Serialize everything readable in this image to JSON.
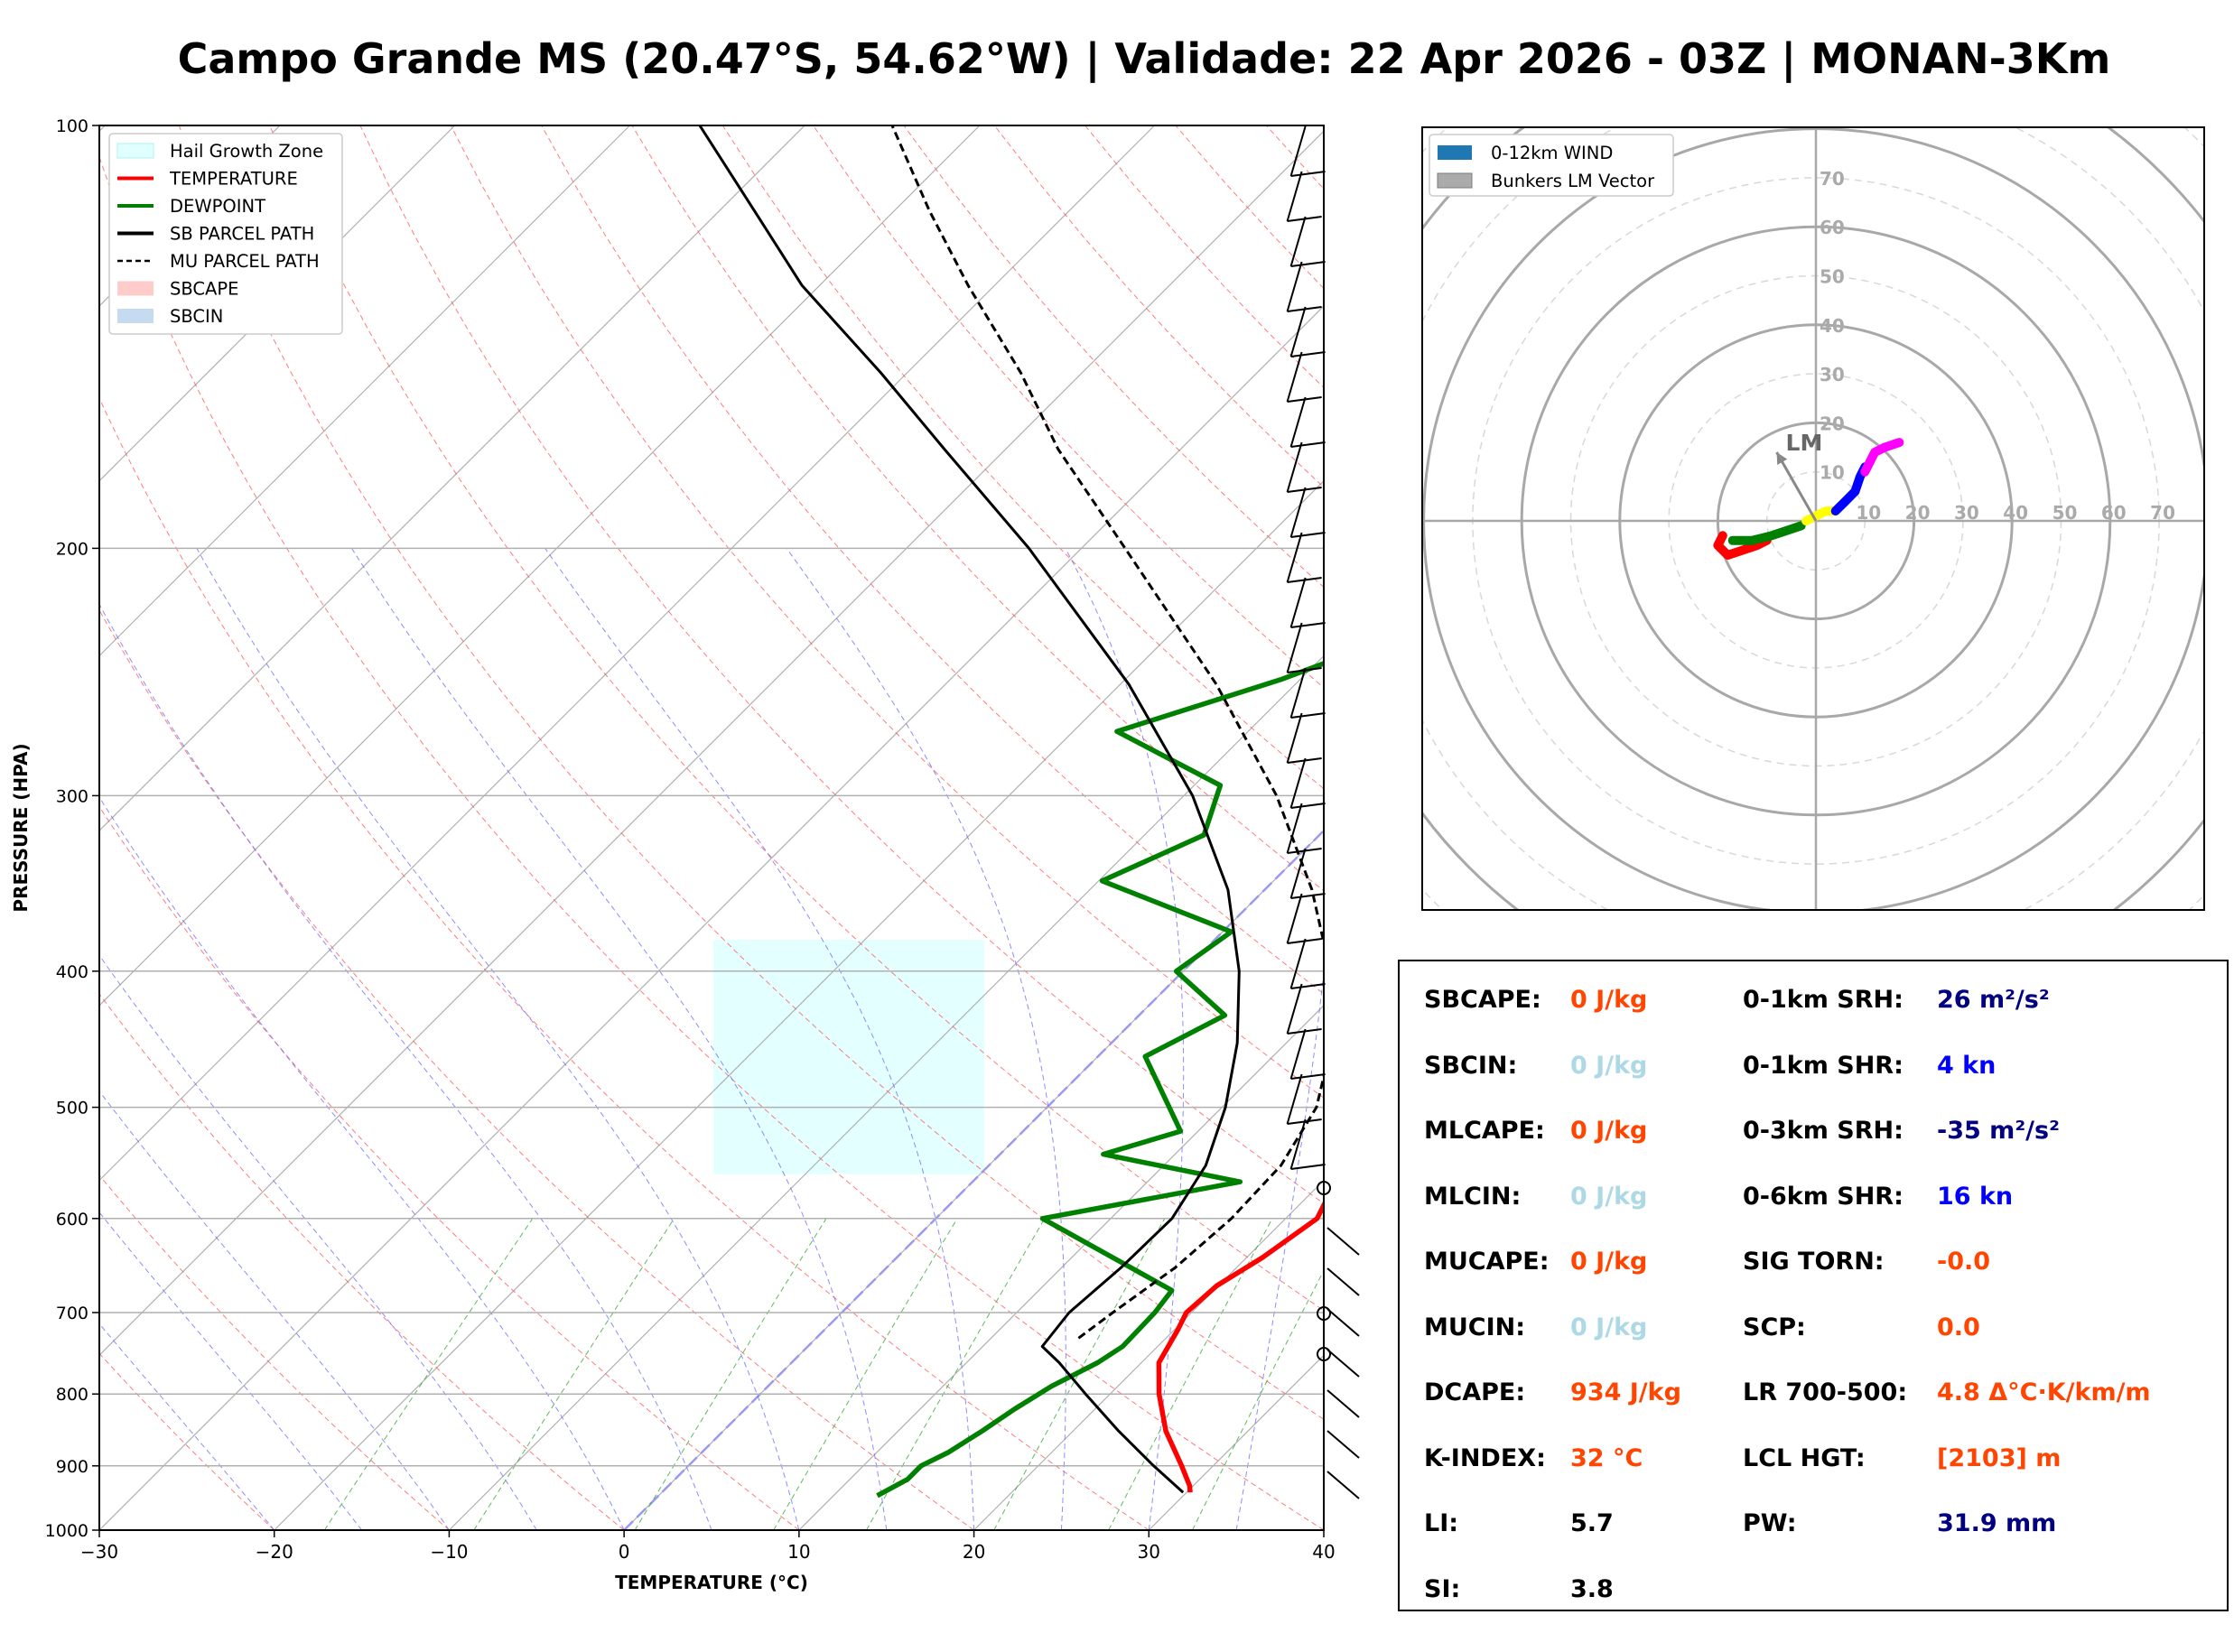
{
  "title": "Campo Grande MS (20.47°S, 54.62°W) | Validade: 22 Apr 2026 - 03Z | MONAN-3Km",
  "chart_data": [
    {
      "type": "line",
      "subtype": "skew-T log-P diagram",
      "xlabel": "TEMPERATURE (°C)",
      "ylabel": "PRESSURE (HPA)",
      "xlim": [
        -30,
        40
      ],
      "ylim": [
        1000,
        100
      ],
      "y_scale": "log",
      "x_ticks": [
        "−30",
        "−20",
        "−10",
        "0",
        "10",
        "20",
        "30",
        "40"
      ],
      "y_ticks": [
        "100",
        "200",
        "300",
        "400",
        "500",
        "600",
        "700",
        "800",
        "900",
        "1000"
      ],
      "grid": true,
      "legend_position": "top-left",
      "legend": [
        {
          "label": "Hail Growth Zone",
          "color": "#e0ffff",
          "style": "patch"
        },
        {
          "label": "TEMPERATURE",
          "color": "#ff0000",
          "style": "solid"
        },
        {
          "label": "DEWPOINT",
          "color": "#008000",
          "style": "solid"
        },
        {
          "label": "SB PARCEL PATH",
          "color": "#000000",
          "style": "solid"
        },
        {
          "label": "MU PARCEL PATH",
          "color": "#000000",
          "style": "dashed"
        },
        {
          "label": "SBCAPE",
          "color": "#ffcccc",
          "style": "patch"
        },
        {
          "label": "SBCIN",
          "color": "#c6dbef",
          "style": "patch"
        }
      ],
      "hail_growth_zone": {
        "p_top": 380,
        "p_bottom": 558
      },
      "series": [
        {
          "name": "TEMPERATURE",
          "color": "#ff0000",
          "points": [
            [
              940,
              30.2
            ],
            [
              930,
              29.8
            ],
            [
              900,
              28.2
            ],
            [
              850,
              25.3
            ],
            [
              800,
              22.8
            ],
            [
              760,
              21.0
            ],
            [
              720,
              20.2
            ],
            [
              700,
              19.7
            ],
            [
              670,
              19.9
            ],
            [
              640,
              20.9
            ],
            [
              600,
              21.8
            ],
            [
              560,
              20.6
            ],
            [
              520,
              19.2
            ],
            [
              500,
              18.4
            ],
            [
              460,
              17.2
            ],
            [
              430,
              15.7
            ],
            [
              400,
              14.3
            ],
            [
              370,
              13.5
            ],
            [
              330,
              12.6
            ],
            [
              300,
              11.0
            ],
            [
              270,
              9.0
            ],
            [
              240,
              6.4
            ],
            [
              220,
              4.4
            ],
            [
              200,
              2.1
            ],
            [
              180,
              -0.5
            ],
            [
              165,
              -2.7
            ],
            [
              150,
              -3.9
            ],
            [
              130,
              -4.0
            ],
            [
              115,
              -2.1
            ],
            [
              100,
              -0.2
            ]
          ]
        },
        {
          "name": "DEWPOINT",
          "color": "#008000",
          "points": [
            [
              945,
              12.5
            ],
            [
              920,
              13.3
            ],
            [
              900,
              13.3
            ],
            [
              880,
              14.1
            ],
            [
              850,
              14.8
            ],
            [
              820,
              15.4
            ],
            [
              790,
              16.2
            ],
            [
              760,
              17.5
            ],
            [
              740,
              18.0
            ],
            [
              700,
              17.9
            ],
            [
              675,
              17.6
            ],
            [
              600,
              6.1
            ],
            [
              565,
              15.3
            ],
            [
              540,
              5.9
            ],
            [
              520,
              9.0
            ],
            [
              460,
              2.7
            ],
            [
              430,
              4.9
            ],
            [
              400,
              -0.4
            ],
            [
              375,
              0.5
            ],
            [
              345,
              -9.8
            ],
            [
              320,
              -6.6
            ],
            [
              295,
              -8.5
            ],
            [
              270,
              -17.5
            ],
            [
              248,
              -11.1
            ],
            [
              220,
              -4.1
            ],
            [
              200,
              -8.9
            ],
            [
              180,
              -14.4
            ],
            [
              160,
              -17.6
            ],
            [
              140,
              -22.4
            ],
            [
              120,
              -24.8
            ],
            [
              100,
              -27.2
            ]
          ]
        },
        {
          "name": "SB PARCEL PATH",
          "color": "#000000",
          "points": [
            [
              940,
              29.8
            ],
            [
              900,
              26.6
            ],
            [
              850,
              22.6
            ],
            [
              800,
              18.6
            ],
            [
              760,
              15.3
            ],
            [
              740,
              13.4
            ],
            [
              700,
              13.0
            ],
            [
              650,
              13.4
            ],
            [
              600,
              13.5
            ],
            [
              550,
              12.4
            ],
            [
              500,
              10.2
            ],
            [
              450,
              7.2
            ],
            [
              400,
              3.2
            ],
            [
              350,
              -2.1
            ],
            [
              300,
              -9.5
            ],
            [
              250,
              -19.5
            ],
            [
              200,
              -33.0
            ],
            [
              170,
              -43.5
            ],
            [
              150,
              -51.5
            ],
            [
              130,
              -61.0
            ],
            [
              115,
              -68.0
            ],
            [
              100,
              -76.0
            ]
          ]
        },
        {
          "name": "MU PARCEL PATH",
          "color": "#000000",
          "points": [
            [
              730,
              15.0
            ],
            [
              700,
              15.5
            ],
            [
              650,
              16.5
            ],
            [
              600,
              16.9
            ],
            [
              550,
              16.7
            ],
            [
              500,
              15.4
            ],
            [
              450,
              12.6
            ],
            [
              400,
              8.4
            ],
            [
              350,
              2.7
            ],
            [
              300,
              -4.7
            ],
            [
              250,
              -14.5
            ],
            [
              200,
              -27.5
            ],
            [
              170,
              -37.0
            ],
            [
              150,
              -43.5
            ],
            [
              130,
              -51.5
            ],
            [
              115,
              -58.0
            ],
            [
              100,
              -65.0
            ]
          ]
        }
      ]
    },
    {
      "type": "line",
      "subtype": "hodograph",
      "r_max": 80,
      "r_ticks": [
        "10",
        "20",
        "30",
        "40",
        "50",
        "60",
        "70"
      ],
      "legend_position": "top-left",
      "legend": [
        {
          "label": "0-12km WIND",
          "color": "#1f77b4"
        },
        {
          "label": "Bunkers LM Vector",
          "color": "#888888"
        }
      ],
      "lm_label": "LM",
      "lm_vector": {
        "u": -8,
        "v": 14
      },
      "segments": [
        {
          "color": "#ff0000",
          "points": [
            [
              -19,
              -3
            ],
            [
              -20,
              -5
            ],
            [
              -18,
              -7
            ],
            [
              -15,
              -6
            ],
            [
              -12,
              -5
            ],
            [
              -10,
              -4
            ]
          ]
        },
        {
          "color": "#008000",
          "points": [
            [
              -17,
              -4
            ],
            [
              -13,
              -4
            ],
            [
              -9,
              -3
            ],
            [
              -6,
              -2
            ],
            [
              -3,
              -1
            ]
          ]
        },
        {
          "color": "#ffff00",
          "points": [
            [
              -2,
              0
            ],
            [
              0,
              1
            ],
            [
              2,
              2
            ],
            [
              4,
              2
            ]
          ]
        },
        {
          "color": "#0000ff",
          "points": [
            [
              4,
              2
            ],
            [
              6,
              4
            ],
            [
              8,
              6
            ],
            [
              9,
              9
            ],
            [
              10,
              11
            ]
          ]
        },
        {
          "color": "#ff00ff",
          "points": [
            [
              10,
              10
            ],
            [
              11,
              12
            ],
            [
              12,
              14
            ],
            [
              14,
              15
            ],
            [
              17,
              16
            ]
          ]
        }
      ]
    }
  ],
  "params": {
    "left": [
      {
        "label": "SBCAPE:",
        "value": "0 J/kg",
        "color": "#ff4500"
      },
      {
        "label": "SBCIN:",
        "value": "0 J/kg",
        "color": "#add8e6"
      },
      {
        "label": "MLCAPE:",
        "value": "0 J/kg",
        "color": "#ff4500"
      },
      {
        "label": "MLCIN:",
        "value": "0 J/kg",
        "color": "#add8e6"
      },
      {
        "label": "MUCAPE:",
        "value": "0 J/kg",
        "color": "#ff4500"
      },
      {
        "label": "MUCIN:",
        "value": "0 J/kg",
        "color": "#add8e6"
      },
      {
        "label": "DCAPE:",
        "value": "934 J/kg",
        "color": "#ff4500"
      },
      {
        "label": "K-INDEX:",
        "value": "32 °C",
        "color": "#ff4500"
      },
      {
        "label": "LI:",
        "value": "5.7",
        "color": "#000000"
      },
      {
        "label": "SI:",
        "value": "3.8",
        "color": "#000000"
      }
    ],
    "right": [
      {
        "label": "0-1km SRH:",
        "value": "26 m²/s²",
        "color": "#000080"
      },
      {
        "label": "0-1km SHR:",
        "value": "4 kn",
        "color": "#0000ff"
      },
      {
        "label": "0-3km SRH:",
        "value": "-35 m²/s²",
        "color": "#000080"
      },
      {
        "label": "0-6km SHR:",
        "value": "16 kn",
        "color": "#0000ff"
      },
      {
        "label": "SIG TORN:",
        "value": "-0.0",
        "color": "#ff4500"
      },
      {
        "label": "SCP:",
        "value": "0.0",
        "color": "#ff4500"
      },
      {
        "label": "LR 700-500:",
        "value": "4.8 Δ°C·K/km/m",
        "color": "#ff4500"
      },
      {
        "label": "LCL HGT:",
        "value": "[2103] m",
        "color": "#ff4500"
      },
      {
        "label": "PW:",
        "value": "31.9 mm",
        "color": "#000080"
      }
    ]
  }
}
